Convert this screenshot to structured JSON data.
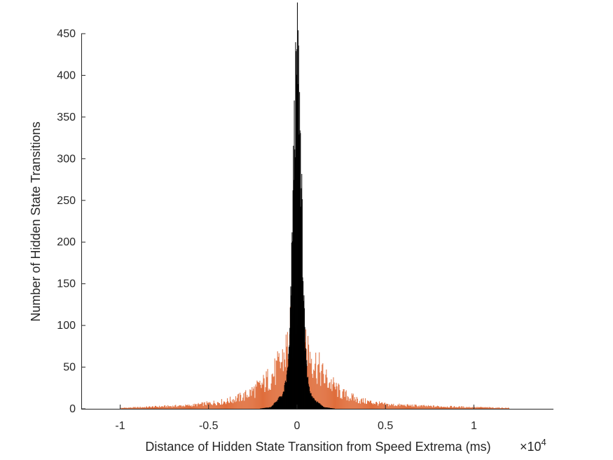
{
  "chart_data": {
    "type": "histogram",
    "xlabel": "Distance of Hidden State Transition from Speed Extrema (ms)",
    "ylabel": "Number of Hidden State Transitions",
    "x_exponent_base": "10",
    "x_exponent_power": "4",
    "xlim": [
      -1.22,
      1.45
    ],
    "ylim": [
      0,
      450
    ],
    "x_ticks": [
      -1,
      -0.5,
      0,
      0.5,
      1
    ],
    "x_tick_labels": [
      "-1",
      "-0.5",
      "0",
      "0.5",
      "1"
    ],
    "y_ticks": [
      0,
      50,
      100,
      150,
      200,
      250,
      300,
      350,
      400,
      450
    ],
    "y_tick_labels": [
      "0",
      "50",
      "100",
      "150",
      "200",
      "250",
      "300",
      "350",
      "400",
      "450"
    ],
    "colors": {
      "black_series": "#000000",
      "orange_series": "#D95319",
      "axis": "#262626"
    },
    "series": [
      {
        "color": "#000000",
        "profile": [
          [
            -0.22,
            0
          ],
          [
            -0.15,
            2
          ],
          [
            -0.08,
            18
          ],
          [
            -0.06,
            38
          ],
          [
            -0.045,
            75
          ],
          [
            -0.035,
            150
          ],
          [
            -0.025,
            260
          ],
          [
            -0.015,
            360
          ],
          [
            -0.005,
            410
          ],
          [
            0,
            428
          ],
          [
            0.005,
            425
          ],
          [
            0.015,
            350
          ],
          [
            0.025,
            250
          ],
          [
            0.035,
            140
          ],
          [
            0.045,
            70
          ],
          [
            0.06,
            35
          ],
          [
            0.08,
            15
          ],
          [
            0.15,
            2
          ],
          [
            0.22,
            0
          ]
        ]
      },
      {
        "color": "#D95319",
        "profile": [
          [
            -1.0,
            1
          ],
          [
            -0.6,
            4
          ],
          [
            -0.4,
            9
          ],
          [
            -0.3,
            15
          ],
          [
            -0.2,
            28
          ],
          [
            -0.12,
            45
          ],
          [
            -0.08,
            60
          ],
          [
            -0.05,
            78
          ],
          [
            -0.03,
            95
          ],
          [
            -0.01,
            118
          ],
          [
            0,
            128
          ],
          [
            0.01,
            118
          ],
          [
            0.03,
            95
          ],
          [
            0.06,
            72
          ],
          [
            0.1,
            55
          ],
          [
            0.15,
            38
          ],
          [
            0.25,
            18
          ],
          [
            0.35,
            10
          ],
          [
            0.5,
            5
          ],
          [
            0.75,
            3
          ],
          [
            1.2,
            1
          ]
        ]
      }
    ]
  }
}
